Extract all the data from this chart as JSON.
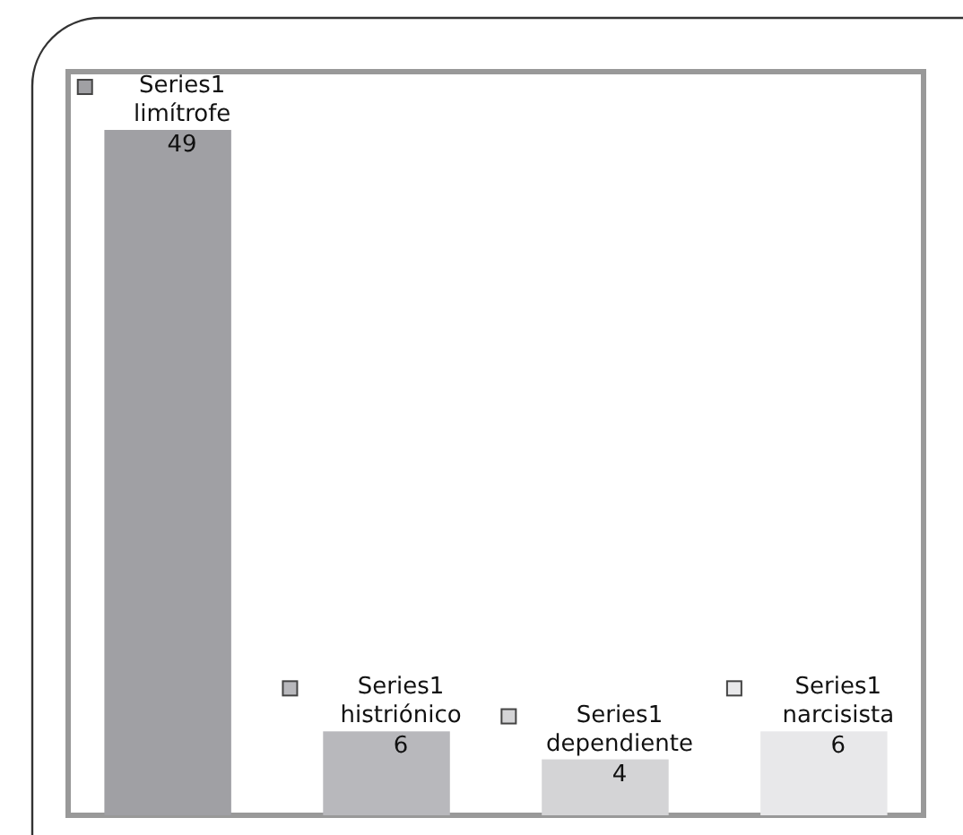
{
  "chart_data": {
    "type": "bar",
    "categories": [
      "limítrofe",
      "histriónico",
      "dependiente",
      "narcisista"
    ],
    "series": [
      {
        "name": "Series1",
        "values": [
          49,
          6,
          4,
          6
        ],
        "colors": [
          "#a0a0a4",
          "#b8b8bc",
          "#d4d4d6",
          "#e8e8ea"
        ]
      }
    ],
    "data_labels": true
  }
}
